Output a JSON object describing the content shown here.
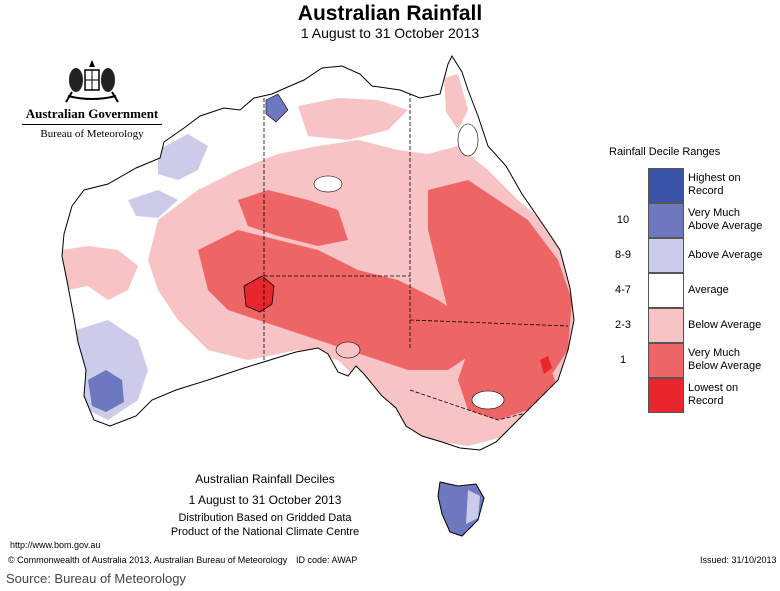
{
  "header": {
    "title": "Australian Rainfall",
    "subtitle": "1 August to 31 October 2013"
  },
  "logo": {
    "line1": "Australian Government",
    "line2": "Bureau of Meteorology"
  },
  "legend": {
    "title": "Rainfall Decile Ranges",
    "items": [
      {
        "range": "",
        "label": "Highest on Record",
        "color": "#3a54a8"
      },
      {
        "range": "10",
        "label": "Very Much Above Average",
        "color": "#6d78bf"
      },
      {
        "range": "8-9",
        "label": "Above Average",
        "color": "#ccccea"
      },
      {
        "range": "4-7",
        "label": "Average",
        "color": "#ffffff"
      },
      {
        "range": "2-3",
        "label": "Below Average",
        "color": "#f7c3c5"
      },
      {
        "range": "1",
        "label": "Very Much Below Average",
        "color": "#ed6565"
      },
      {
        "range": "",
        "label": "Lowest on Record",
        "color": "#e8262c"
      }
    ]
  },
  "caption": {
    "title": "Australian Rainfall Deciles",
    "period": "1 August to 31 October 2013",
    "distribution": "Distribution Based on Gridded Data",
    "product": "Product of the National Climate Centre"
  },
  "footer": {
    "url": "http://www.bom.gov.au",
    "copyright": "© Commonwealth of Australia 2013, Australian Bureau of Meteorology",
    "id_code": "ID code: AWAP",
    "issued": "Issued: 31/10/2013",
    "source": "Source: Bureau of Meteorology"
  }
}
